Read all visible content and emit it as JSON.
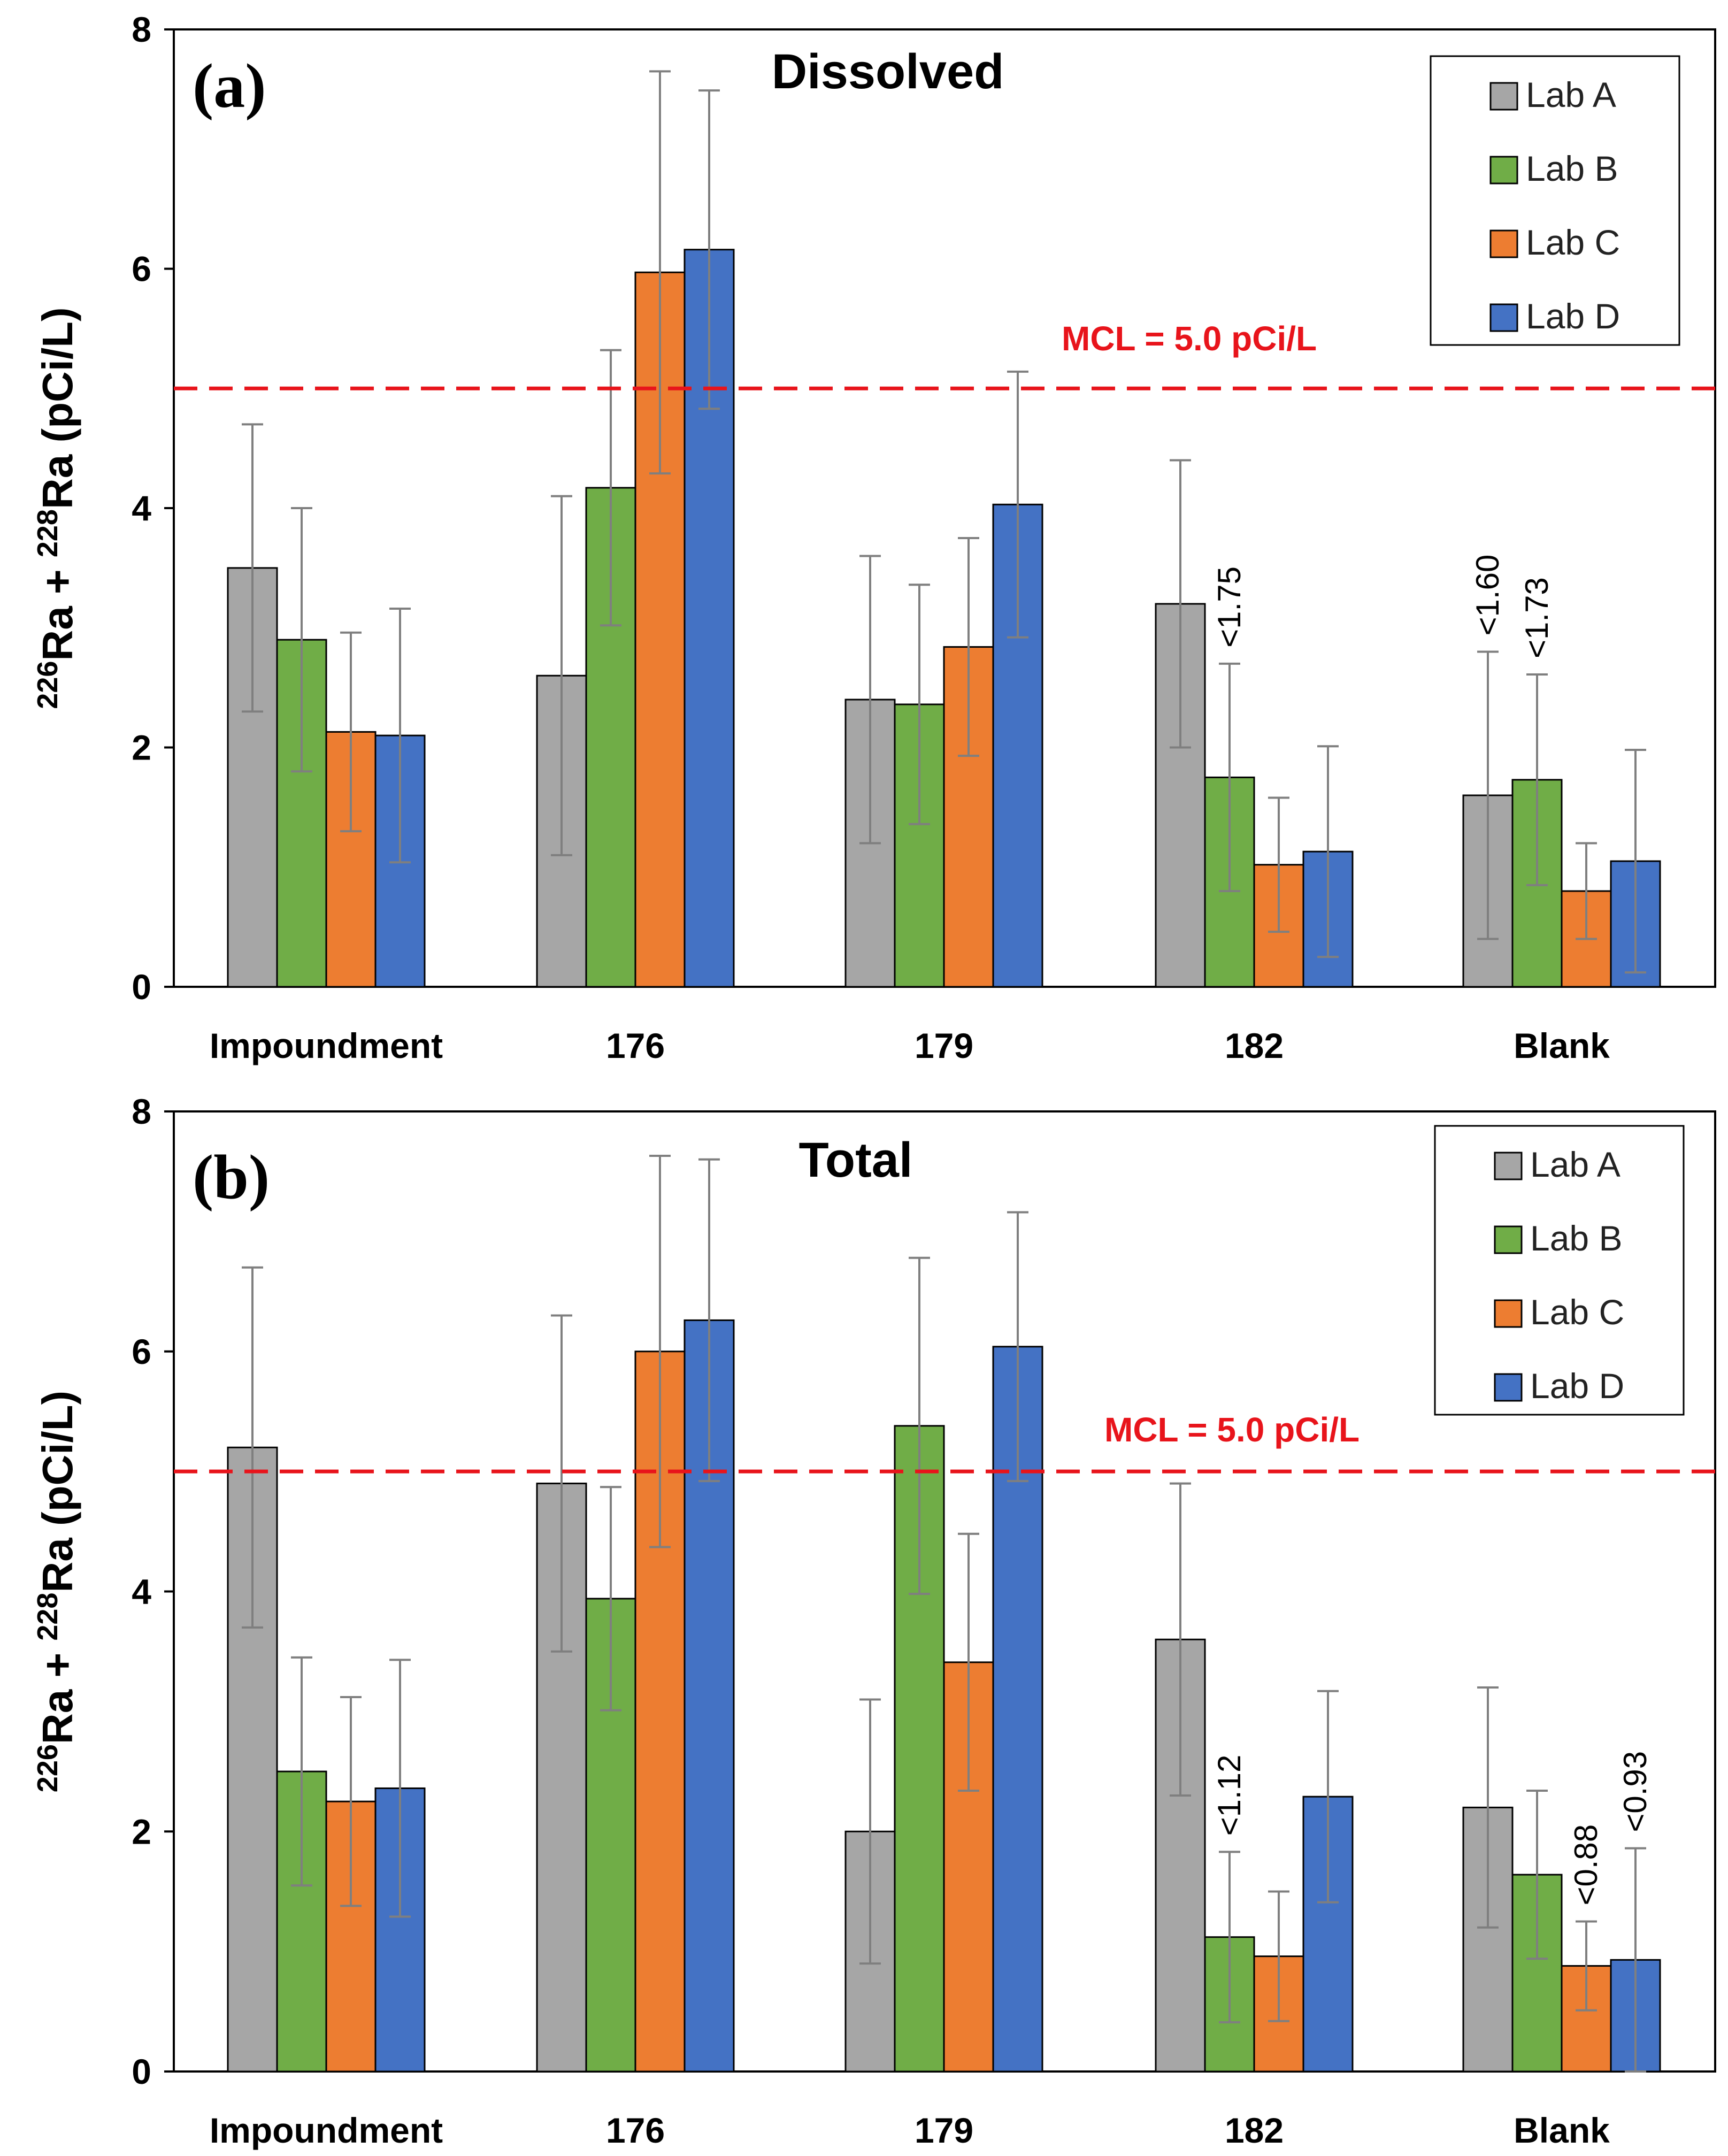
{
  "chart_data": [
    {
      "type": "bar",
      "panel_letter": "(a)",
      "title": "Dissolved",
      "ylabel": {
        "base_1": "Ra + ",
        "base_2": "Ra (pCi/L)",
        "iso_1": "226",
        "iso_2": "228"
      },
      "xlabel": "",
      "ylim": [
        0,
        8
      ],
      "yticks": [
        "0",
        "2",
        "4",
        "6",
        "8"
      ],
      "categories": [
        "Impoundment",
        "176",
        "179",
        "182",
        "Blank"
      ],
      "series": [
        {
          "name": "Lab A",
          "color": "#a6a6a6",
          "values": [
            3.5,
            2.6,
            2.4,
            3.2,
            1.6
          ],
          "errors": [
            1.2,
            1.5,
            1.2,
            1.2,
            1.2
          ]
        },
        {
          "name": "Lab B",
          "color": "#70ad47",
          "values": [
            2.9,
            4.17,
            2.36,
            1.75,
            1.73
          ],
          "errors": [
            1.1,
            1.15,
            1.0,
            0.95,
            0.88
          ]
        },
        {
          "name": "Lab C",
          "color": "#ed7d31",
          "values": [
            2.13,
            5.97,
            2.84,
            1.02,
            0.8
          ],
          "errors": [
            0.83,
            1.68,
            0.91,
            0.56,
            0.4
          ]
        },
        {
          "name": "Lab D",
          "color": "#4472c4",
          "values": [
            2.1,
            6.16,
            4.03,
            1.13,
            1.05
          ],
          "errors": [
            1.06,
            1.33,
            1.11,
            0.88,
            0.93
          ]
        }
      ],
      "threshold": {
        "value": 5.0,
        "label": "MCL = 5.0 pCi/L",
        "color": "#e8141b"
      },
      "annotations": [
        {
          "category": 3,
          "series": 1,
          "text": "<1.75"
        },
        {
          "category": 4,
          "series": 0,
          "text": "<1.60"
        },
        {
          "category": 4,
          "series": 1,
          "text": "<1.73"
        }
      ],
      "legend_position": "top-right"
    },
    {
      "type": "bar",
      "panel_letter": "(b)",
      "title": "Total",
      "ylabel": {
        "base_1": "Ra + ",
        "base_2": "Ra (pCi/L)",
        "iso_1": "226",
        "iso_2": "228"
      },
      "xlabel": "",
      "ylim": [
        0,
        8
      ],
      "yticks": [
        "0",
        "2",
        "4",
        "6",
        "8"
      ],
      "categories": [
        "Impoundment",
        "176",
        "179",
        "182",
        "Blank"
      ],
      "series": [
        {
          "name": "Lab A",
          "color": "#a6a6a6",
          "values": [
            5.2,
            4.9,
            2.0,
            3.6,
            2.2
          ],
          "errors": [
            1.5,
            1.4,
            1.1,
            1.3,
            1.0
          ]
        },
        {
          "name": "Lab B",
          "color": "#70ad47",
          "values": [
            2.5,
            3.94,
            5.38,
            1.12,
            1.64
          ],
          "errors": [
            0.95,
            0.93,
            1.4,
            0.71,
            0.7
          ]
        },
        {
          "name": "Lab C",
          "color": "#ed7d31",
          "values": [
            2.25,
            6.0,
            3.41,
            0.96,
            0.88
          ],
          "errors": [
            0.87,
            1.63,
            1.07,
            0.54,
            0.37
          ]
        },
        {
          "name": "Lab D",
          "color": "#4472c4",
          "values": [
            2.36,
            6.26,
            6.04,
            2.29,
            0.93
          ],
          "errors": [
            1.07,
            1.34,
            1.12,
            0.88,
            0.93
          ]
        }
      ],
      "threshold": {
        "value": 5.0,
        "label": "MCL = 5.0 pCi/L",
        "color": "#e8141b"
      },
      "annotations": [
        {
          "category": 3,
          "series": 1,
          "text": "<1.12"
        },
        {
          "category": 4,
          "series": 2,
          "text": "<0.88"
        },
        {
          "category": 4,
          "series": 3,
          "text": "<0.93"
        }
      ],
      "legend_position": "top-right"
    }
  ]
}
